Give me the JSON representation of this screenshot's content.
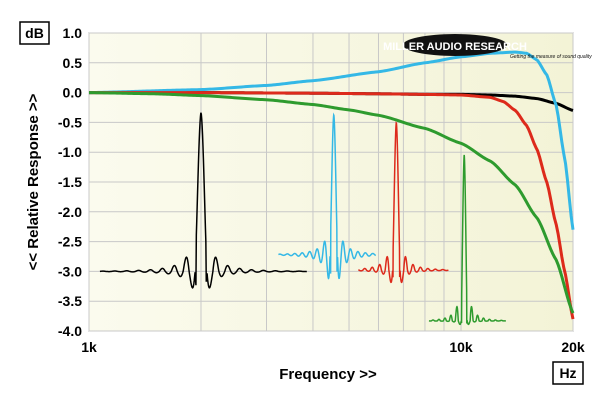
{
  "chart_data": {
    "type": "line",
    "title": "",
    "xlabel": "Frequency >>",
    "ylabel": "<< Relative Response >>",
    "x_unit": "Hz",
    "y_unit": "dB",
    "x_scale": "log",
    "xlim": [
      1000,
      20000
    ],
    "ylim": [
      -4.0,
      1.0
    ],
    "x_ticks": [
      "1k",
      "10k",
      "20k"
    ],
    "y_ticks": [
      "1.0",
      "0.5",
      "0.0",
      "-0.5",
      "-1.0",
      "-1.5",
      "-2.0",
      "-2.5",
      "-3.0",
      "-3.5",
      "-4.0"
    ],
    "grid": true,
    "logo": {
      "text": "MILLER AUDIO RESEARCH",
      "tagline": "Getting the measure of sound quality"
    },
    "series": [
      {
        "color": "#000000",
        "x": [
          1000,
          2000,
          4000,
          6000,
          8000,
          10000,
          12000,
          14000,
          16000,
          18000,
          20000
        ],
        "y": [
          0.0,
          0.0,
          -0.01,
          -0.02,
          -0.03,
          -0.03,
          -0.04,
          -0.06,
          -0.1,
          -0.18,
          -0.3
        ]
      },
      {
        "color": "#34b8e6",
        "x": [
          1000,
          2000,
          3000,
          4000,
          6000,
          8000,
          10000,
          12000,
          14000,
          15000,
          16000,
          17000,
          18000,
          19000,
          20000
        ],
        "y": [
          0.0,
          0.05,
          0.12,
          0.2,
          0.35,
          0.5,
          0.6,
          0.66,
          0.68,
          0.66,
          0.55,
          0.3,
          -0.2,
          -1.1,
          -2.3
        ]
      },
      {
        "color": "#dd2a1b",
        "x": [
          1000,
          2000,
          4000,
          6000,
          8000,
          10000,
          12000,
          13000,
          14000,
          15000,
          16000,
          17000,
          18000,
          19000,
          20000
        ],
        "y": [
          0.0,
          0.0,
          -0.01,
          -0.02,
          -0.03,
          -0.04,
          -0.08,
          -0.15,
          -0.3,
          -0.55,
          -0.95,
          -1.5,
          -2.2,
          -3.0,
          -3.8
        ]
      },
      {
        "color": "#2e9b2e",
        "x": [
          1000,
          1500,
          2000,
          3000,
          4000,
          5000,
          6000,
          8000,
          10000,
          12000,
          14000,
          16000,
          18000,
          20000
        ],
        "y": [
          0.0,
          -0.02,
          -0.05,
          -0.12,
          -0.2,
          -0.29,
          -0.38,
          -0.6,
          -0.85,
          -1.15,
          -1.55,
          -2.1,
          -2.8,
          -3.7
        ]
      }
    ],
    "impulses": [
      {
        "color": "#000000",
        "x0": 1070,
        "x1": 3850,
        "xc": 2000,
        "y0": -3.0,
        "peak": -0.33,
        "trough": -3.55,
        "width": 0.016,
        "decay": 0.018,
        "ring": 0.35
      },
      {
        "color": "#34b8e6",
        "x0": 3230,
        "x1": 5900,
        "xc": 4550,
        "y0": -2.72,
        "peak": -0.37,
        "trough": -3.48,
        "width": 0.01,
        "decay": 0.014,
        "ring": 0.25
      },
      {
        "color": "#dd2a1b",
        "x0": 5300,
        "x1": 9250,
        "xc": 6700,
        "y0": -2.98,
        "peak": -0.5,
        "trough": -3.38,
        "width": 0.01,
        "decay": 0.012,
        "ring": 0.2
      },
      {
        "color": "#2e9b2e",
        "x0": 8200,
        "x1": 13200,
        "xc": 10200,
        "y0": -3.83,
        "peak": -1.04,
        "trough": -3.95,
        "width": 0.008,
        "decay": 0.008,
        "ring": 0.1
      }
    ]
  }
}
